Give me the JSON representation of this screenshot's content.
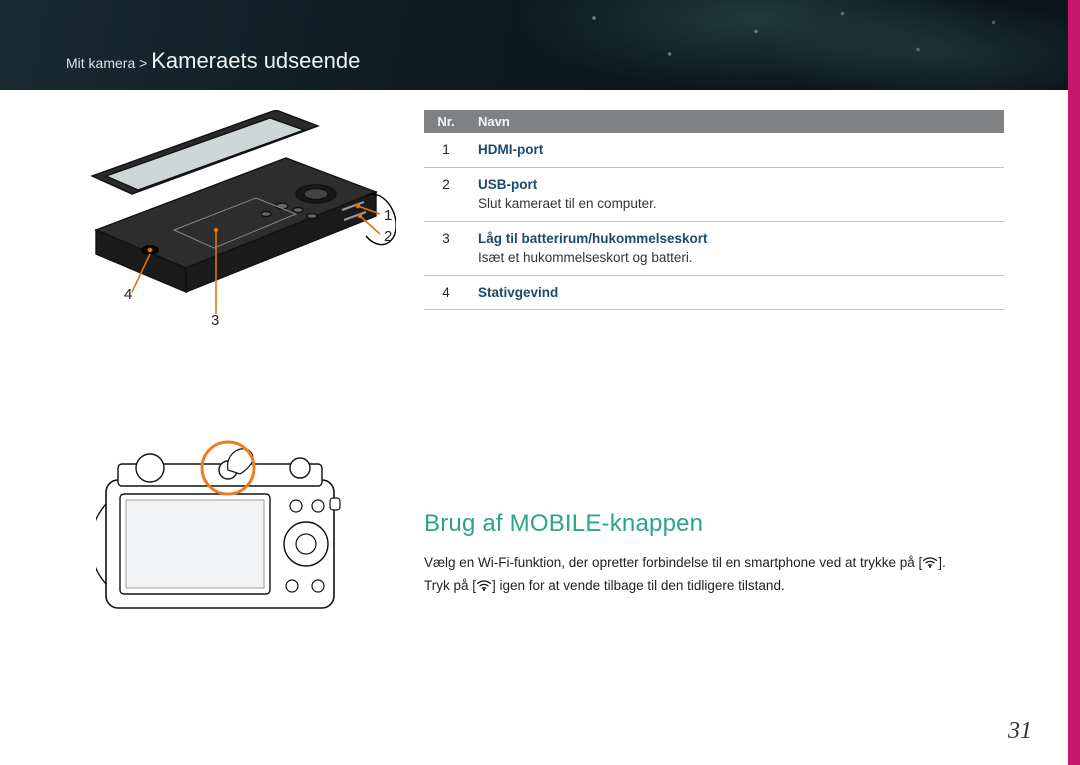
{
  "breadcrumb": {
    "prefix": "Mit kamera >",
    "title": "Kameraets udseende"
  },
  "callouts_top": {
    "n1": "1",
    "n2": "2",
    "n3": "3",
    "n4": "4"
  },
  "table": {
    "head_nr": "Nr.",
    "head_name": "Navn",
    "rows": [
      {
        "nr": "1",
        "name": "HDMI-port",
        "desc": ""
      },
      {
        "nr": "2",
        "name": "USB-port",
        "desc": "Slut kameraet til en computer."
      },
      {
        "nr": "3",
        "name": "Låg til batterirum/hukommelseskort",
        "desc": "Isæt et hukommelseskort og batteri."
      },
      {
        "nr": "4",
        "name": "Stativgevind",
        "desc": ""
      }
    ]
  },
  "section": {
    "heading": "Brug af MOBILE-knappen",
    "line1a": "Vælg en Wi-Fi-funktion, der opretter forbindelse til en smartphone ved at trykke på [",
    "line1b": "].",
    "line2a": "Tryk på [",
    "line2b": "] igen for at vende tilbage til den tidligere tilstand."
  },
  "page_number": "31",
  "colors": {
    "accent_stripe": "#c7176f",
    "heading": "#2aa589",
    "table_head_bg": "#808183",
    "table_border": "#bfc2c4",
    "callout_line": "#e2740f",
    "highlight_circle": "#f07c1e"
  }
}
